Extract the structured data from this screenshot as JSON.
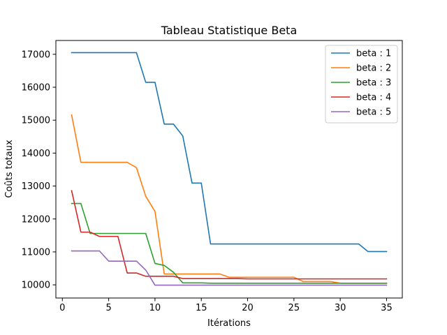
{
  "chart_data": {
    "type": "line",
    "title": "Tableau Statistique Beta",
    "xlabel": "Itérations",
    "ylabel": "Coûts totaux",
    "xlim": [
      -0.7,
      36.7
    ],
    "ylim": [
      9600,
      17420
    ],
    "xticks": [
      0,
      5,
      10,
      15,
      20,
      25,
      30,
      35
    ],
    "yticks": [
      10000,
      11000,
      12000,
      13000,
      14000,
      15000,
      16000,
      17000
    ],
    "grid": false,
    "legend_position": "top-right",
    "x": [
      1,
      2,
      3,
      4,
      5,
      6,
      7,
      8,
      9,
      10,
      11,
      12,
      13,
      14,
      15,
      16,
      17,
      18,
      19,
      20,
      21,
      22,
      23,
      24,
      25,
      26,
      27,
      28,
      29,
      30,
      31,
      32,
      33,
      34,
      35
    ],
    "series": [
      {
        "name": "beta : 1",
        "color": "#1f77b4",
        "values": [
          17050,
          17050,
          17050,
          17050,
          17050,
          17050,
          17050,
          17050,
          16150,
          16150,
          14880,
          14880,
          14520,
          13090,
          13090,
          11240,
          11240,
          11240,
          11240,
          11240,
          11240,
          11240,
          11240,
          11240,
          11240,
          11240,
          11240,
          11240,
          11240,
          11240,
          11240,
          11240,
          11010,
          11010,
          11010
        ]
      },
      {
        "name": "beta : 2",
        "color": "#ff7f0e",
        "values": [
          15160,
          13720,
          13720,
          13720,
          13720,
          13720,
          13720,
          13560,
          12690,
          12230,
          10330,
          10330,
          10330,
          10330,
          10330,
          10330,
          10330,
          10230,
          10230,
          10230,
          10230,
          10230,
          10230,
          10230,
          10230,
          10100,
          10100,
          10100,
          10100,
          10050,
          10050,
          10050,
          10050,
          10050,
          10050
        ]
      },
      {
        "name": "beta : 3",
        "color": "#2ca02c",
        "values": [
          12470,
          12470,
          11560,
          11560,
          11560,
          11560,
          11560,
          11560,
          11560,
          10650,
          10590,
          10380,
          10060,
          10060,
          10060,
          10050,
          10050,
          10050,
          10050,
          10050,
          10050,
          10050,
          10050,
          10050,
          10050,
          10050,
          10050,
          10050,
          10050,
          10050,
          10050,
          10050,
          10050,
          10050,
          10050
        ]
      },
      {
        "name": "beta : 4",
        "color": "#d62728",
        "values": [
          12860,
          11600,
          11600,
          11470,
          11470,
          11470,
          10360,
          10360,
          10260,
          10260,
          10260,
          10260,
          10190,
          10190,
          10190,
          10190,
          10190,
          10190,
          10190,
          10180,
          10180,
          10180,
          10180,
          10180,
          10180,
          10180,
          10180,
          10180,
          10180,
          10180,
          10180,
          10180,
          10180,
          10180,
          10180
        ]
      },
      {
        "name": "beta : 5",
        "color": "#9467bd",
        "values": [
          11030,
          11030,
          11030,
          11030,
          10720,
          10720,
          10720,
          10720,
          10450,
          9990,
          9990,
          9990,
          9990,
          9990,
          9990,
          9990,
          9990,
          9990,
          9990,
          9990,
          9990,
          9990,
          9990,
          9990,
          9990,
          9990,
          9990,
          9990,
          9990,
          9990,
          9990,
          9990,
          9990,
          9990,
          9990
        ]
      }
    ]
  }
}
